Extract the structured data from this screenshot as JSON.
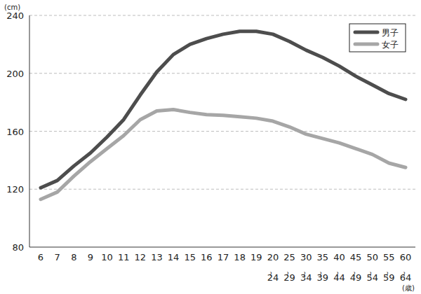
{
  "chart_data": {
    "type": "line",
    "x_label": "(歳)",
    "y_label": "(cm)",
    "categories": [
      "6",
      "7",
      "8",
      "9",
      "10",
      "11",
      "12",
      "13",
      "14",
      "15",
      "16",
      "17",
      "18",
      "19",
      "20～24",
      "25～29",
      "30～34",
      "35～39",
      "40～44",
      "45～49",
      "50～54",
      "55～59",
      "60～64"
    ],
    "series": [
      {
        "name": "男子",
        "color": "#4d4d4d",
        "values": [
          121,
          126,
          136,
          145,
          156,
          168,
          185,
          201,
          213,
          220,
          224,
          227,
          229,
          229,
          227,
          222,
          216,
          211,
          205,
          198,
          192,
          186,
          182
        ]
      },
      {
        "name": "女子",
        "color": "#a6a6a6",
        "values": [
          113,
          118,
          129,
          139,
          148,
          157,
          168,
          174,
          175,
          173,
          171.5,
          171,
          170,
          169,
          167,
          163,
          158,
          155,
          152,
          148,
          144,
          138,
          135
        ]
      }
    ],
    "ylim": [
      80,
      240
    ],
    "yticks": [
      80,
      120,
      160,
      200,
      240
    ],
    "grid": true,
    "legend": "upper right"
  }
}
